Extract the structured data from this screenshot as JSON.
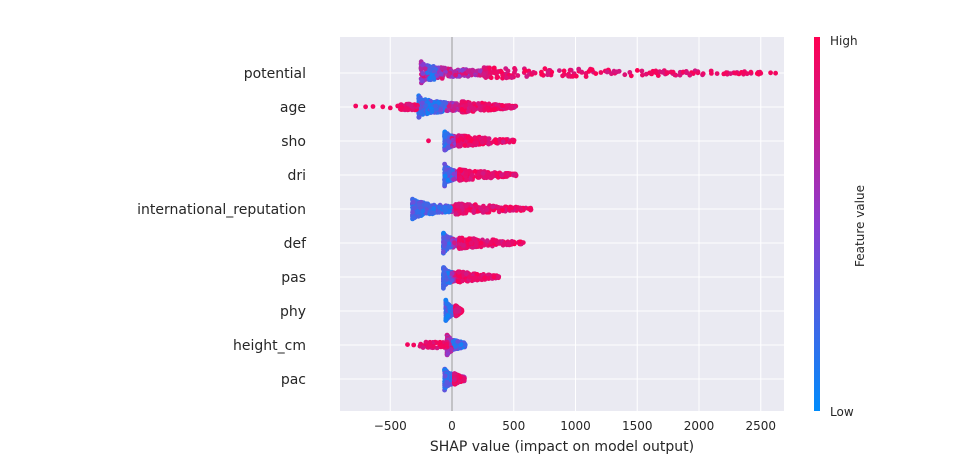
{
  "chart_data": {
    "type": "scatter",
    "subtype": "shap-beeswarm",
    "title": "",
    "xlabel": "SHAP value (impact on model output)",
    "ylabel": "",
    "xlim": [
      -950,
      2800
    ],
    "x_ticks": [
      -500,
      0,
      500,
      1000,
      1500,
      2000,
      2500
    ],
    "x_tick_labels": [
      "−500",
      "0",
      "500",
      "1000",
      "1500",
      "2000",
      "2500"
    ],
    "grid": true,
    "zero_line": 0,
    "colors": {
      "low": "#008bfb",
      "mid": "#8a3cd0",
      "high": "#ff0052",
      "panel": "#eaeaf2",
      "grid": "#ffffff",
      "text": "#262626"
    },
    "colorbar": {
      "label": "Feature value",
      "high_label": "High",
      "low_label": "Low",
      "placement": "right"
    },
    "features": [
      {
        "name": "potential",
        "core": [
          -250,
          300
        ],
        "low_range": [
          -200,
          -130
        ],
        "high_tail": [
          260,
          2620
        ],
        "high_outliers": [
          1600,
          1650,
          1740,
          1790,
          2100,
          2220,
          2300,
          2360,
          2420,
          2500,
          2580,
          2620
        ],
        "low_tail": [],
        "low_outliers": []
      },
      {
        "name": "age",
        "core": [
          -270,
          200
        ],
        "low_range": [
          -270,
          -50
        ],
        "high_tail": [
          80,
          520
        ],
        "high_outliers": [],
        "low_tail": [
          -420,
          -280
        ],
        "low_outliers": [
          -780,
          -700,
          -640,
          -560,
          -500,
          -440,
          -410
        ]
      },
      {
        "name": "sho",
        "core": [
          -60,
          120
        ],
        "low_range": [
          -120,
          0
        ],
        "high_tail": [
          50,
          510
        ],
        "high_outliers": [],
        "low_tail": [],
        "low_outliers": [
          -190
        ]
      },
      {
        "name": "dri",
        "core": [
          -60,
          110
        ],
        "low_range": [
          -60,
          10
        ],
        "high_tail": [
          60,
          520
        ],
        "high_outliers": [],
        "low_tail": [],
        "low_outliers": []
      },
      {
        "name": "international_reputation",
        "core": [
          -320,
          80
        ],
        "low_range": [
          -320,
          -10
        ],
        "high_tail": [
          30,
          650
        ],
        "high_outliers": [],
        "low_tail": [],
        "low_outliers": []
      },
      {
        "name": "def",
        "core": [
          -70,
          100
        ],
        "low_range": [
          -80,
          0
        ],
        "high_tail": [
          60,
          580
        ],
        "high_outliers": [],
        "low_tail": [],
        "low_outliers": []
      },
      {
        "name": "pas",
        "core": [
          -70,
          100
        ],
        "low_range": [
          -80,
          0
        ],
        "high_tail": [
          50,
          380
        ],
        "high_outliers": [],
        "low_tail": [],
        "low_outliers": []
      },
      {
        "name": "phy",
        "core": [
          -50,
          60
        ],
        "low_range": [
          -50,
          30
        ],
        "high_tail": [
          30,
          80
        ],
        "high_outliers": [],
        "low_tail": [],
        "low_outliers": []
      },
      {
        "name": "height_cm",
        "core": [
          -40,
          110
        ],
        "low_range": [
          0,
          110
        ],
        "high_tail": [],
        "high_outliers": [],
        "low_tail": [
          -260,
          -40
        ],
        "low_outliers": [
          -360,
          -310
        ]
      },
      {
        "name": "pac",
        "core": [
          -60,
          100
        ],
        "low_range": [
          -60,
          40
        ],
        "high_tail": [
          20,
          100
        ],
        "high_outliers": [],
        "low_tail": [],
        "low_outliers": []
      }
    ]
  }
}
